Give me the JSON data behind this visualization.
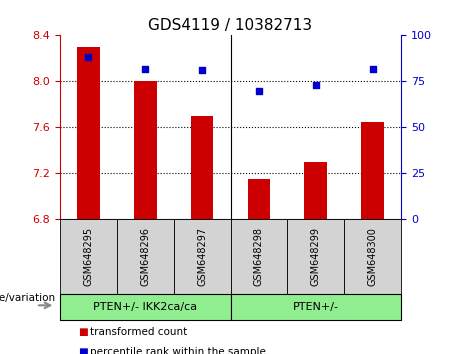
{
  "title": "GDS4119 / 10382713",
  "samples": [
    "GSM648295",
    "GSM648296",
    "GSM648297",
    "GSM648298",
    "GSM648299",
    "GSM648300"
  ],
  "transformed_count": [
    8.3,
    8.0,
    7.7,
    7.15,
    7.3,
    7.65
  ],
  "percentile_rank": [
    88,
    82,
    81,
    70,
    73,
    82
  ],
  "bar_color": "#cc0000",
  "dot_color": "#0000cc",
  "ylim_left": [
    6.8,
    8.4
  ],
  "ylim_right": [
    0,
    100
  ],
  "yticks_left": [
    6.8,
    7.2,
    7.6,
    8.0,
    8.4
  ],
  "yticks_right": [
    0,
    25,
    50,
    75,
    100
  ],
  "group1_label": "PTEN+/- IKK2ca/ca",
  "group2_label": "PTEN+/-",
  "group1_indices": [
    0,
    1,
    2
  ],
  "group2_indices": [
    3,
    4,
    5
  ],
  "group_color": "#90ee90",
  "sample_box_color": "#d3d3d3",
  "genotype_label": "genotype/variation",
  "legend_bar_label": "transformed count",
  "legend_dot_label": "percentile rank within the sample",
  "bar_base": 6.8,
  "bg_color": "#ffffff",
  "tick_color_left": "#cc0000",
  "tick_color_right": "#0000cc",
  "title_fontsize": 11,
  "axis_fontsize": 8,
  "sample_fontsize": 7,
  "group_fontsize": 8,
  "legend_fontsize": 7.5,
  "genotype_fontsize": 7.5
}
